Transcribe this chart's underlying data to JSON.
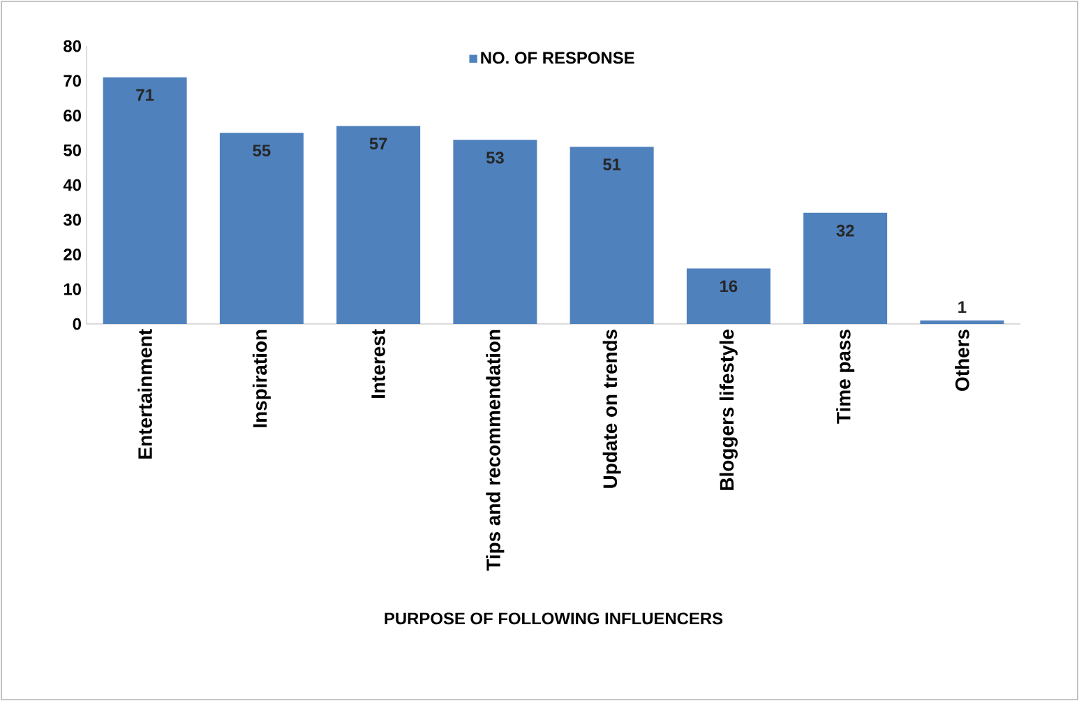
{
  "chart_data": {
    "type": "bar",
    "xlabel": "PURPOSE OF FOLLOWING INFLUENCERS",
    "categories": [
      "Entertainment",
      "Inspiration",
      "Interest",
      "Tips and recommendation",
      "Update on trends",
      "Bloggers lifestyle",
      "Time pass",
      "Others"
    ],
    "series": [
      {
        "name": "NO. OF RESPONSE",
        "color": "#4f81bd",
        "values": [
          71,
          55,
          57,
          53,
          51,
          16,
          32,
          1
        ]
      }
    ],
    "ylim": [
      0,
      80
    ],
    "yticks": [
      0,
      10,
      20,
      30,
      40,
      50,
      60,
      70,
      80
    ],
    "data_labels": true,
    "legend": "top",
    "grid": false
  }
}
